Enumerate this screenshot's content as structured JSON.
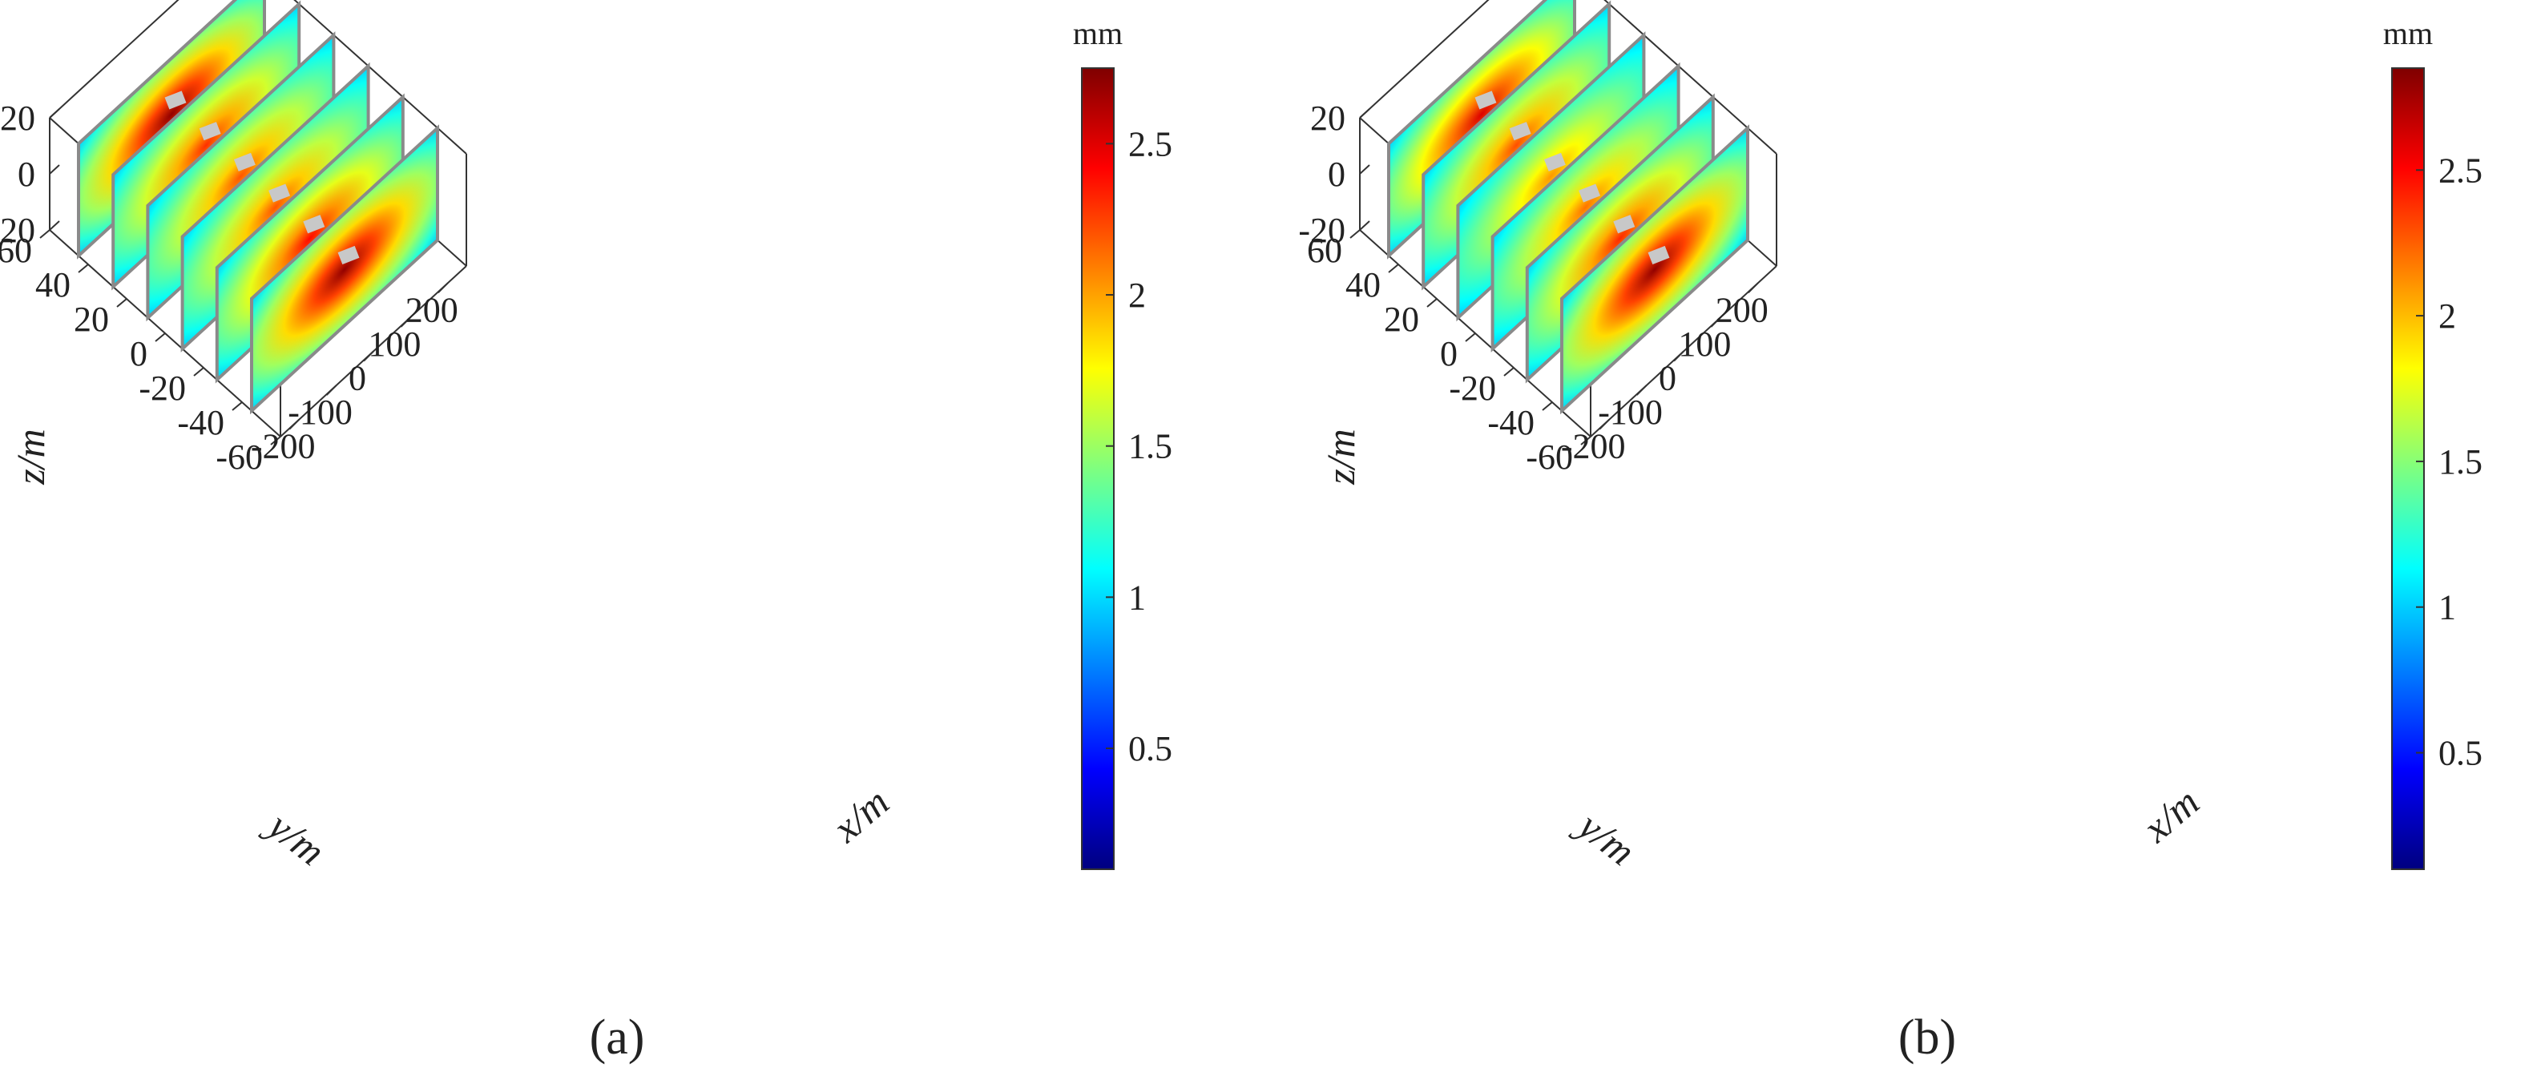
{
  "panels": [
    {
      "id": "a",
      "caption": "(a)"
    },
    {
      "id": "b",
      "caption": "(b)"
    }
  ],
  "chart_data": [
    {
      "type": "heatmap",
      "subtype": "3d-slice-contour",
      "title": "",
      "xlabel": "x/m",
      "ylabel": "y/m",
      "zlabel": "z/m",
      "colorbar_label": "mm",
      "colorbar_ticks": [
        0.5,
        1,
        1.5,
        2,
        2.5
      ],
      "colorbar_range": [
        0.1,
        2.75
      ],
      "colormap": "jet",
      "x_ticks": [
        -200,
        -100,
        0,
        100,
        200
      ],
      "y_ticks": [
        -60,
        -40,
        -20,
        0,
        20,
        40,
        60
      ],
      "z_ticks": [
        -20,
        0,
        20
      ],
      "xlim": [
        -250,
        250
      ],
      "ylim": [
        -60,
        60
      ],
      "zlim": [
        -20,
        20
      ],
      "slices": [
        {
          "y": 45,
          "peak_mm": 2.7
        },
        {
          "y": 27,
          "peak_mm": 2.3
        },
        {
          "y": 9,
          "peak_mm": 2.2
        },
        {
          "y": -9,
          "peak_mm": 2.2
        },
        {
          "y": -27,
          "peak_mm": 2.4
        },
        {
          "y": -45,
          "peak_mm": 2.7
        }
      ]
    },
    {
      "type": "heatmap",
      "subtype": "3d-slice-contour",
      "title": "",
      "xlabel": "x/m",
      "ylabel": "y/m",
      "zlabel": "z/m",
      "colorbar_label": "mm",
      "colorbar_ticks": [
        0.5,
        1,
        1.5,
        2,
        2.5
      ],
      "colorbar_range": [
        0.1,
        2.85
      ],
      "colormap": "jet",
      "x_ticks": [
        -200,
        -100,
        0,
        100,
        200
      ],
      "y_ticks": [
        -60,
        -40,
        -20,
        0,
        20,
        40,
        60
      ],
      "z_ticks": [
        -20,
        0,
        20
      ],
      "xlim": [
        -250,
        250
      ],
      "ylim": [
        -60,
        60
      ],
      "zlim": [
        -20,
        20
      ],
      "slices": [
        {
          "y": 45,
          "peak_mm": 2.6
        },
        {
          "y": 27,
          "peak_mm": 2.3
        },
        {
          "y": 9,
          "peak_mm": 2.1
        },
        {
          "y": -9,
          "peak_mm": 2.2
        },
        {
          "y": -27,
          "peak_mm": 2.4
        },
        {
          "y": -45,
          "peak_mm": 2.8
        }
      ]
    }
  ]
}
